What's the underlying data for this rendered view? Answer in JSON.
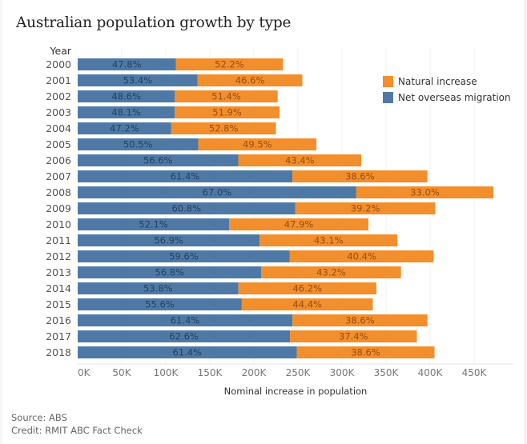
{
  "title": "Australian population growth by type",
  "footer": {
    "source": "Source: ABS",
    "credit": "Credit: RMIT ABC Fact Check"
  },
  "colors": {
    "net_overseas_migration": "#4e79a7",
    "natural_increase": "#f28e2b"
  },
  "chart_data": {
    "type": "bar",
    "orientation": "horizontal",
    "stacked": true,
    "title": "Australian population growth by type",
    "xlabel": "Nominal increase in population",
    "ylabel": "Year",
    "xlim": [
      0,
      475000
    ],
    "xticks": [
      0,
      50000,
      100000,
      150000,
      200000,
      250000,
      300000,
      350000,
      400000,
      450000
    ],
    "xtick_labels": [
      "0K",
      "50K",
      "100K",
      "150K",
      "200K",
      "250K",
      "300K",
      "350K",
      "400K",
      "450K"
    ],
    "grid": true,
    "legend_position": "top-right",
    "categories": [
      "2000",
      "2001",
      "2002",
      "2003",
      "2004",
      "2005",
      "2006",
      "2007",
      "2008",
      "2009",
      "2010",
      "2011",
      "2012",
      "2013",
      "2014",
      "2015",
      "2016",
      "2017",
      "2018"
    ],
    "totals": [
      233000,
      255000,
      227000,
      229000,
      225000,
      271000,
      322000,
      397000,
      472000,
      406000,
      330000,
      363000,
      404000,
      367000,
      339000,
      335000,
      397000,
      385000,
      405000
    ],
    "series": [
      {
        "name": "Net overseas migration",
        "color_key": "net_overseas_migration",
        "share_labels": [
          "47.8%",
          "53.4%",
          "48.6%",
          "48.1%",
          "47.2%",
          "50.5%",
          "56.6%",
          "61.4%",
          "67.0%",
          "60.8%",
          "52.1%",
          "56.9%",
          "59.6%",
          "56.8%",
          "53.8%",
          "55.6%",
          "61.4%",
          "62.6%",
          "61.4%"
        ],
        "shares": [
          0.478,
          0.534,
          0.486,
          0.481,
          0.472,
          0.505,
          0.566,
          0.614,
          0.67,
          0.608,
          0.521,
          0.569,
          0.596,
          0.568,
          0.538,
          0.556,
          0.614,
          0.626,
          0.614
        ]
      },
      {
        "name": "Natural increase",
        "color_key": "natural_increase",
        "share_labels": [
          "52.2%",
          "46.6%",
          "51.4%",
          "51.9%",
          "52.8%",
          "49.5%",
          "43.4%",
          "38.6%",
          "33.0%",
          "39.2%",
          "47.9%",
          "43.1%",
          "40.4%",
          "43.2%",
          "46.2%",
          "44.4%",
          "38.6%",
          "37.4%",
          "38.6%"
        ],
        "shares": [
          0.522,
          0.466,
          0.514,
          0.519,
          0.528,
          0.495,
          0.434,
          0.386,
          0.33,
          0.392,
          0.479,
          0.431,
          0.404,
          0.432,
          0.462,
          0.444,
          0.386,
          0.374,
          0.386
        ]
      }
    ],
    "legend": [
      {
        "label": "Natural increase",
        "color_key": "natural_increase"
      },
      {
        "label": "Net overseas migration",
        "color_key": "net_overseas_migration"
      }
    ]
  }
}
